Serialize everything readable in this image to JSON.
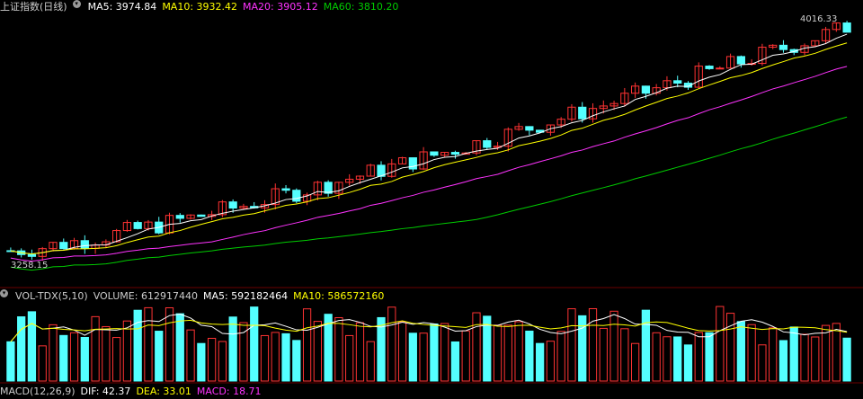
{
  "price_panel": {
    "title": "上证指数(日线)",
    "ma5_label": "MA5: 3974.84",
    "ma10_label": "MA10: 3932.42",
    "ma20_label": "MA20: 3905.12",
    "ma60_label": "MA60: 3810.20",
    "high_label": "4016.33",
    "low_label": "3258.15",
    "colors": {
      "ma5": "#ffffff",
      "ma10": "#ffff00",
      "ma20": "#ff33ff",
      "ma60": "#00cc00",
      "up": "#ff3333",
      "down": "#54ffff"
    }
  },
  "volume_panel": {
    "title": "VOL-TDX(5,10)",
    "volume_label": "VOLUME: 612917440",
    "ma5_label": "MA5: 592182464",
    "ma10_label": "MA10: 586572160"
  },
  "macd_panel": {
    "title": "MACD(12,26,9)",
    "dif_label": "DIF: 42.37",
    "dea_label": "DEA: 33.01",
    "macd_label": "MACD: 18.71"
  },
  "chart_data": {
    "type": "candlestick",
    "count": 80,
    "start": 3290,
    "end": 4000,
    "high": 4016.33,
    "low": 3258.15
  }
}
